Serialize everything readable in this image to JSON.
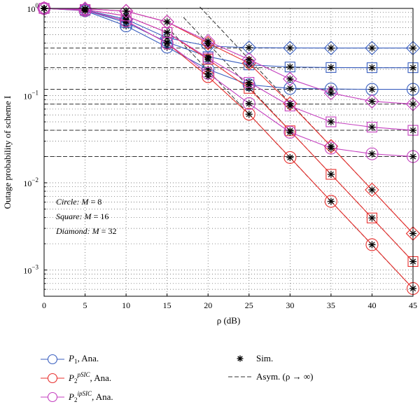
{
  "chart_data": {
    "type": "line",
    "xlabel": "ρ (dB)",
    "ylabel": "Outage probability of scheme I",
    "y_scale": "log",
    "xlim": [
      0,
      45
    ],
    "ylim": [
      0.0005,
      1
    ],
    "x_ticks": [
      0,
      5,
      10,
      15,
      20,
      25,
      30,
      35,
      40,
      45
    ],
    "y_tick_labels": [
      {
        "value": 1,
        "base": "10",
        "exp": "0"
      },
      {
        "value": 0.1,
        "base": "10",
        "exp": "−1"
      },
      {
        "value": 0.01,
        "base": "10",
        "exp": "−2"
      },
      {
        "value": 0.001,
        "base": "10",
        "exp": "−3"
      }
    ],
    "grid": true,
    "x": [
      0,
      5,
      10,
      15,
      20,
      25,
      30,
      35,
      40,
      45
    ],
    "series": [
      {
        "name": "P1, Ana.",
        "scheme": "P1",
        "M": 8,
        "marker": "circle",
        "color": "#3a5fbf",
        "values": [
          1.0,
          0.94,
          0.63,
          0.36,
          0.2,
          0.133,
          0.121,
          0.119,
          0.118,
          0.118
        ]
      },
      {
        "name": "P1, Ana.",
        "scheme": "P1",
        "M": 16,
        "marker": "square",
        "color": "#3a5fbf",
        "values": [
          1.0,
          0.95,
          0.69,
          0.41,
          0.28,
          0.225,
          0.213,
          0.21,
          0.209,
          0.209
        ]
      },
      {
        "name": "P1, Ana.",
        "scheme": "P1",
        "M": 32,
        "marker": "diamond",
        "color": "#3a5fbf",
        "values": [
          1.0,
          0.96,
          0.75,
          0.46,
          0.37,
          0.355,
          0.352,
          0.351,
          0.351,
          0.351
        ]
      },
      {
        "name": "P2^pSIC, Ana.",
        "scheme": "pSIC",
        "M": 8,
        "marker": "circle",
        "color": "#e8302e",
        "values": [
          1.0,
          0.95,
          0.72,
          0.4,
          0.165,
          0.0612,
          0.0195,
          0.00613,
          0.00195,
          0.000613
        ]
      },
      {
        "name": "P2^pSIC, Ana.",
        "scheme": "pSIC",
        "M": 16,
        "marker": "square",
        "color": "#e8302e",
        "values": [
          1.0,
          0.97,
          0.82,
          0.53,
          0.26,
          0.121,
          0.0395,
          0.0125,
          0.00395,
          0.00125
        ]
      },
      {
        "name": "P2^pSIC, Ana.",
        "scheme": "pSIC",
        "M": 32,
        "marker": "diamond",
        "color": "#e8302e",
        "values": [
          1.0,
          0.99,
          0.93,
          0.7,
          0.4,
          0.235,
          0.081,
          0.0262,
          0.0083,
          0.00262
        ]
      },
      {
        "name": "P2^ipSIC, Ana.",
        "scheme": "ipSIC",
        "M": 8,
        "marker": "circle",
        "color": "#c43fbf",
        "values": [
          1.0,
          0.95,
          0.72,
          0.4,
          0.18,
          0.081,
          0.038,
          0.025,
          0.0215,
          0.02
        ]
      },
      {
        "name": "P2^ipSIC, Ana.",
        "scheme": "ipSIC",
        "M": 16,
        "marker": "square",
        "color": "#c43fbf",
        "values": [
          1.0,
          0.97,
          0.82,
          0.53,
          0.27,
          0.142,
          0.076,
          0.05,
          0.0435,
          0.04
        ]
      },
      {
        "name": "P2^ipSIC, Ana.",
        "scheme": "ipSIC",
        "M": 32,
        "marker": "diamond",
        "color": "#c43fbf",
        "values": [
          1.0,
          0.99,
          0.93,
          0.7,
          0.42,
          0.26,
          0.155,
          0.107,
          0.086,
          0.08
        ]
      }
    ],
    "asymptotes_horizontal": [
      0.351,
      0.209,
      0.118,
      0.08,
      0.04,
      0.02
    ],
    "asymptotes_sloped": [
      {
        "x": [
          15,
          45
        ],
        "values": [
          0.613,
          0.000613
        ]
      },
      {
        "x": [
          17,
          45
        ],
        "values": [
          0.79,
          0.00125
        ]
      },
      {
        "x": [
          19,
          45
        ],
        "values": [
          1.04,
          0.00262
        ]
      }
    ],
    "annotations": [
      {
        "shape": "Circle",
        "M": "8"
      },
      {
        "shape": "Square",
        "M": "16"
      },
      {
        "shape": "Diamond",
        "M": "32"
      }
    ],
    "legend": [
      {
        "id": "p1",
        "main": "P",
        "sub": "1",
        "sup": "",
        "suffix": ", Ana.",
        "color": "#3a5fbf",
        "symbol": "line-circle"
      },
      {
        "id": "psic",
        "main": "P",
        "sub": "2",
        "sup": "pSIC",
        "suffix": ", Ana.",
        "color": "#e8302e",
        "symbol": "line-circle"
      },
      {
        "id": "ipsic",
        "main": "P",
        "sub": "2",
        "sup": "ipSIC",
        "suffix": ", Ana.",
        "color": "#c43fbf",
        "symbol": "line-circle"
      },
      {
        "id": "sim",
        "text": "Sim.",
        "symbol": "star"
      },
      {
        "id": "asym",
        "text": "Asym. (ρ → ∞)",
        "symbol": "dashed"
      }
    ],
    "legend_placement": "below"
  }
}
